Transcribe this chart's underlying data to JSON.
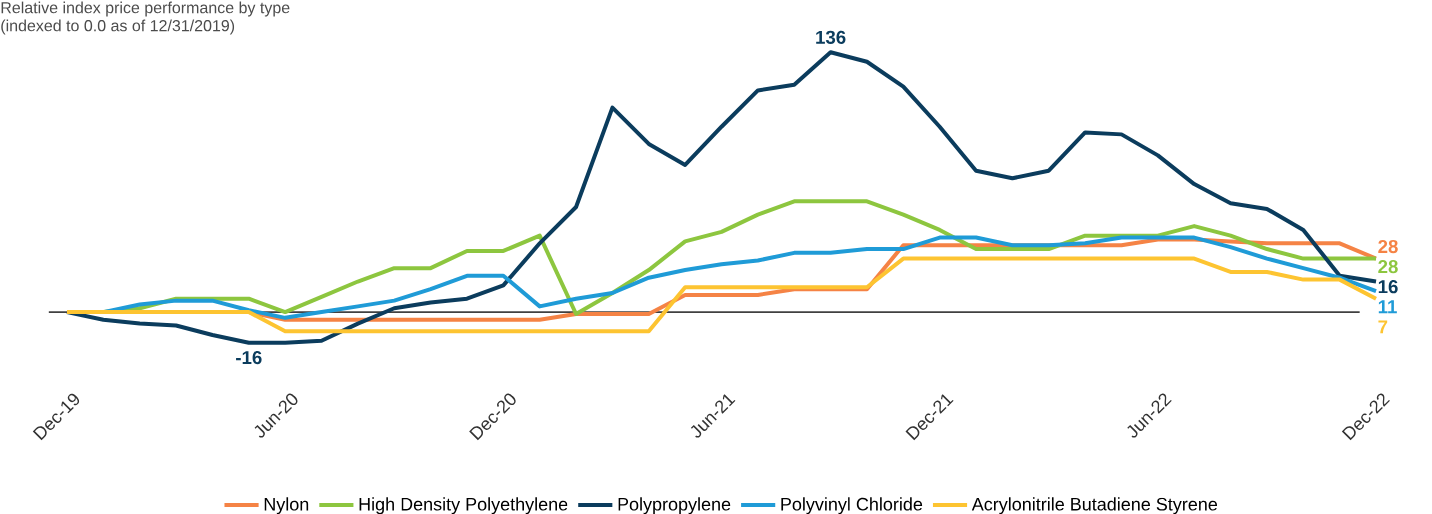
{
  "chart_data": {
    "type": "line",
    "title": "Relative index price performance by type",
    "subtitle": "(indexed to 0.0 as of 12/31/2019)",
    "categories": [
      "Dec-19",
      null,
      null,
      null,
      null,
      null,
      "Jun-20",
      null,
      null,
      null,
      null,
      null,
      "Dec-20",
      null,
      null,
      null,
      null,
      null,
      "Jun-21",
      null,
      null,
      null,
      null,
      null,
      "Dec-21",
      null,
      null,
      null,
      null,
      null,
      "Jun-22",
      null,
      null,
      null,
      null,
      null,
      "Dec-22"
    ],
    "series": [
      {
        "name": "Nylon",
        "color": "#f58345",
        "values": [
          null,
          null,
          null,
          null,
          0,
          0,
          -4,
          -4,
          -4,
          -4,
          -4,
          -4,
          -4,
          -4,
          -1,
          -1,
          -1,
          9,
          9,
          9,
          12,
          12,
          12,
          35,
          35,
          35,
          35,
          35,
          35,
          35,
          38,
          38,
          37,
          36,
          36,
          36,
          28
        ],
        "value_labels": [
          null,
          null,
          null,
          null,
          null,
          null,
          null,
          null,
          null,
          null,
          null,
          null,
          null,
          null,
          null,
          null,
          null,
          null,
          null,
          null,
          null,
          null,
          null,
          null,
          null,
          null,
          null,
          null,
          null,
          null,
          null,
          null,
          null,
          null,
          null,
          null,
          "28"
        ]
      },
      {
        "name": "High Density Polyethylene",
        "color": "#8dc63f",
        "values": [
          0,
          0,
          2,
          7,
          7,
          7,
          0,
          8,
          16,
          23,
          23,
          32,
          32,
          40,
          -1,
          10,
          22,
          37,
          42,
          51,
          58,
          58,
          58,
          51,
          43,
          33,
          33,
          33,
          40,
          40,
          40,
          45,
          40,
          33,
          28,
          28,
          28
        ],
        "value_labels": [
          null,
          null,
          null,
          null,
          null,
          null,
          null,
          null,
          null,
          null,
          null,
          null,
          null,
          null,
          null,
          null,
          null,
          null,
          null,
          null,
          null,
          null,
          null,
          null,
          null,
          null,
          null,
          null,
          null,
          null,
          null,
          null,
          null,
          null,
          null,
          null,
          "28"
        ]
      },
      {
        "name": "Polypropylene",
        "color": "#0b3c5d",
        "values": [
          0,
          -4,
          -6,
          -7,
          -12,
          -16,
          -16,
          -15,
          -6,
          2,
          5,
          7,
          14,
          36,
          55,
          107,
          88,
          77,
          97,
          116,
          119,
          136,
          131,
          118,
          97,
          74,
          70,
          74,
          94,
          93,
          82,
          67,
          57,
          54,
          43,
          19,
          16
        ],
        "value_labels": [
          null,
          null,
          null,
          null,
          null,
          "-16",
          null,
          null,
          null,
          null,
          null,
          null,
          null,
          null,
          null,
          null,
          null,
          null,
          null,
          null,
          null,
          "136",
          null,
          null,
          null,
          null,
          null,
          null,
          null,
          null,
          null,
          null,
          null,
          null,
          null,
          null,
          "16"
        ]
      },
      {
        "name": "Polyvinyl Chloride",
        "color": "#1f9bd7",
        "values": [
          0,
          0,
          4,
          6,
          6,
          1,
          -3,
          0,
          3,
          6,
          12,
          19,
          19,
          3,
          7,
          10,
          18,
          22,
          25,
          27,
          31,
          31,
          33,
          33,
          39,
          39,
          35,
          35,
          36,
          39,
          39,
          39,
          34,
          28,
          23,
          18,
          11
        ],
        "value_labels": [
          null,
          null,
          null,
          null,
          null,
          null,
          null,
          null,
          null,
          null,
          null,
          null,
          null,
          null,
          null,
          null,
          null,
          null,
          null,
          null,
          null,
          null,
          null,
          null,
          null,
          null,
          null,
          null,
          null,
          null,
          null,
          null,
          null,
          null,
          null,
          null,
          "11"
        ]
      },
      {
        "name": "Acrylonitrile Butadiene Styrene",
        "color": "#fdc431",
        "values": [
          0,
          0,
          0,
          0,
          0,
          0,
          -10,
          -10,
          -10,
          -10,
          -10,
          -10,
          -10,
          -10,
          -10,
          -10,
          -10,
          13,
          13,
          13,
          13,
          13,
          13,
          28,
          28,
          28,
          28,
          28,
          28,
          28,
          28,
          28,
          21,
          21,
          17,
          17,
          7
        ],
        "value_labels": [
          null,
          null,
          null,
          null,
          null,
          null,
          null,
          null,
          null,
          null,
          null,
          null,
          null,
          null,
          null,
          null,
          null,
          null,
          null,
          null,
          null,
          null,
          null,
          null,
          null,
          null,
          null,
          null,
          null,
          null,
          null,
          null,
          null,
          null,
          null,
          null,
          "7"
        ]
      }
    ],
    "tick_labels": "x",
    "ref_lines": [
      {
        "axis": "y",
        "value": 0,
        "color": "#404040"
      }
    ],
    "legend": "bottom",
    "grid": false,
    "marker": "none",
    "line_style": "solid"
  }
}
